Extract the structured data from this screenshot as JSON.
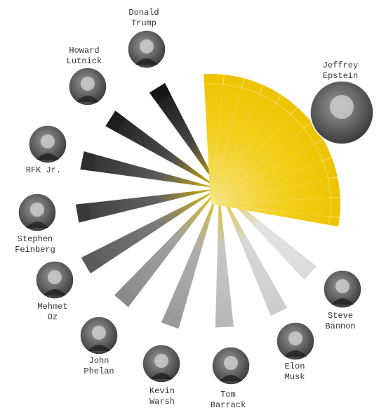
{
  "hub": {
    "lines": [
      "Jeffrey",
      "Epstein"
    ]
  },
  "nodes": [
    {
      "lines": [
        "Donald",
        "Trump"
      ]
    },
    {
      "lines": [
        "Howard",
        "Lutnick"
      ]
    },
    {
      "lines": [
        "RFK Jr."
      ]
    },
    {
      "lines": [
        "Stephen",
        "Feinberg"
      ]
    },
    {
      "lines": [
        "Mehmet",
        "Oz"
      ]
    },
    {
      "lines": [
        "John",
        "Phelan"
      ]
    },
    {
      "lines": [
        "Kevin",
        "Warsh"
      ]
    },
    {
      "lines": [
        "Tom",
        "Barrack"
      ]
    },
    {
      "lines": [
        "Elon",
        "Musk"
      ]
    },
    {
      "lines": [
        "Steve",
        "Bannon"
      ]
    }
  ]
}
